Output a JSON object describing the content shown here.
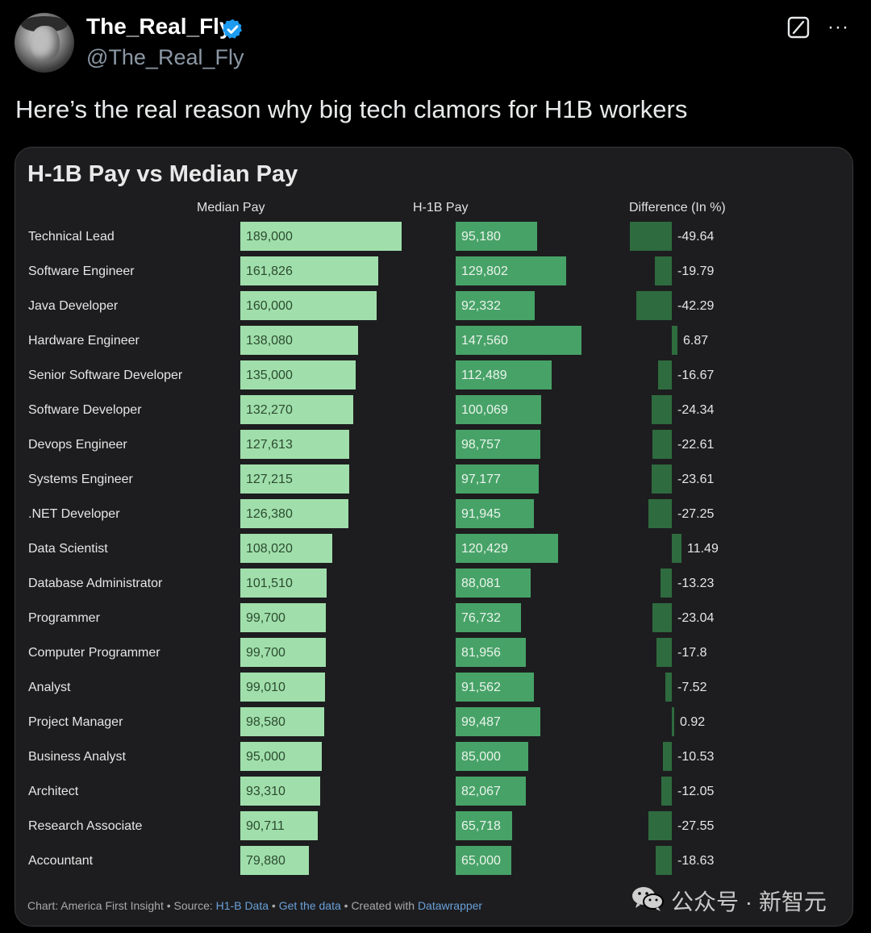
{
  "tweet": {
    "display_name": "The_Real_Fly",
    "handle": "@The_Real_Fly",
    "text": "Here’s the real reason why big tech clamors for H1B workers",
    "more_label": "···"
  },
  "chart_data": {
    "type": "bar",
    "title": "H-1B Pay vs Median Pay",
    "column_headers": [
      "Median Pay",
      "H-1B Pay",
      "Difference (In %)"
    ],
    "rows": [
      {
        "label": "Technical Lead",
        "median": "189,000",
        "h1b": "95,180",
        "diff": "-49.64"
      },
      {
        "label": "Software Engineer",
        "median": "161,826",
        "h1b": "129,802",
        "diff": "-19.79"
      },
      {
        "label": "Java Developer",
        "median": "160,000",
        "h1b": "92,332",
        "diff": "-42.29"
      },
      {
        "label": "Hardware Engineer",
        "median": "138,080",
        "h1b": "147,560",
        "diff": "6.87"
      },
      {
        "label": "Senior Software Developer",
        "median": "135,000",
        "h1b": "112,489",
        "diff": "-16.67"
      },
      {
        "label": "Software Developer",
        "median": "132,270",
        "h1b": "100,069",
        "diff": "-24.34"
      },
      {
        "label": "Devops Engineer",
        "median": "127,613",
        "h1b": "98,757",
        "diff": "-22.61"
      },
      {
        "label": "Systems Engineer",
        "median": "127,215",
        "h1b": "97,177",
        "diff": "-23.61"
      },
      {
        "label": ".NET Developer",
        "median": "126,380",
        "h1b": "91,945",
        "diff": "-27.25"
      },
      {
        "label": "Data Scientist",
        "median": "108,020",
        "h1b": "120,429",
        "diff": "11.49"
      },
      {
        "label": "Database Administrator",
        "median": "101,510",
        "h1b": "88,081",
        "diff": "-13.23"
      },
      {
        "label": "Programmer",
        "median": "99,700",
        "h1b": "76,732",
        "diff": "-23.04"
      },
      {
        "label": "Computer Programmer",
        "median": "99,700",
        "h1b": "81,956",
        "diff": "-17.8"
      },
      {
        "label": "Analyst",
        "median": "99,010",
        "h1b": "91,562",
        "diff": "-7.52"
      },
      {
        "label": "Project Manager",
        "median": "98,580",
        "h1b": "99,487",
        "diff": "0.92"
      },
      {
        "label": "Business Analyst",
        "median": "95,000",
        "h1b": "85,000",
        "diff": "-10.53"
      },
      {
        "label": "Architect",
        "median": "93,310",
        "h1b": "82,067",
        "diff": "-12.05"
      },
      {
        "label": "Research Associate",
        "median": "90,711",
        "h1b": "65,718",
        "diff": "-27.55"
      },
      {
        "label": "Accountant",
        "median": "79,880",
        "h1b": "65,000",
        "diff": "-18.63"
      }
    ],
    "colors": {
      "median": "#a0dfab",
      "h1b": "#47a267",
      "diff": "#2e6b3f"
    }
  },
  "footer": {
    "prefix": "Chart: America First Insight • Source: ",
    "source_link": "H1-B Data",
    "sep1": " • ",
    "data_link": "Get the data",
    "created": " • Created with ",
    "tool_link": "Datawrapper"
  },
  "watermark": {
    "text": "公众号 · 新智元"
  }
}
